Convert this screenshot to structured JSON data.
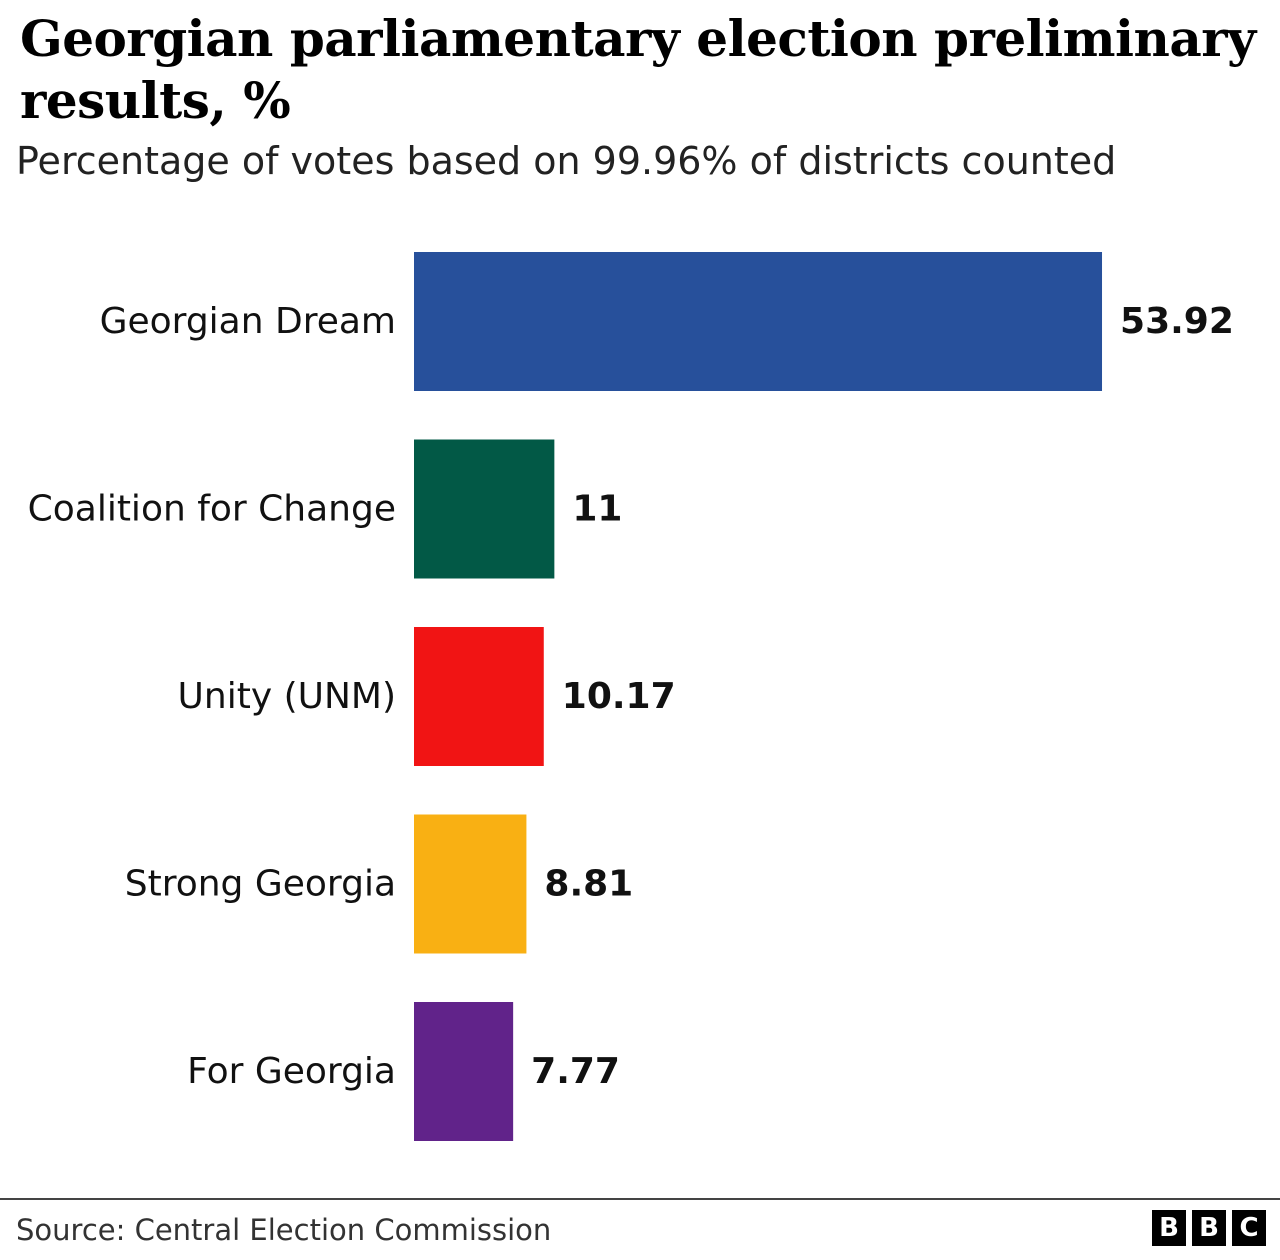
{
  "title": "Georgian parliamentary election preliminary results, %",
  "subtitle": "Percentage of votes based on 99.96% of districts counted",
  "source": "Source: Central Election Commission",
  "logo": {
    "letters": [
      "B",
      "B",
      "C"
    ]
  },
  "chart_data": {
    "type": "bar",
    "orientation": "horizontal",
    "title": "Georgian parliamentary election preliminary results, %",
    "subtitle": "Percentage of votes based on 99.96% of districts counted",
    "categories": [
      "Georgian Dream",
      "Coalition for Change",
      "Unity (UNM)",
      "Strong Georgia",
      "For Georgia"
    ],
    "values": [
      53.92,
      11,
      10.17,
      8.81,
      7.77
    ],
    "value_labels": [
      "53.92",
      "11",
      "10.17",
      "8.81",
      "7.77"
    ],
    "colors": [
      "#27509b",
      "#025946",
      "#f11414",
      "#f9b013",
      "#61238a"
    ],
    "xlim": [
      0,
      60
    ],
    "grid": false,
    "legend": "none"
  }
}
